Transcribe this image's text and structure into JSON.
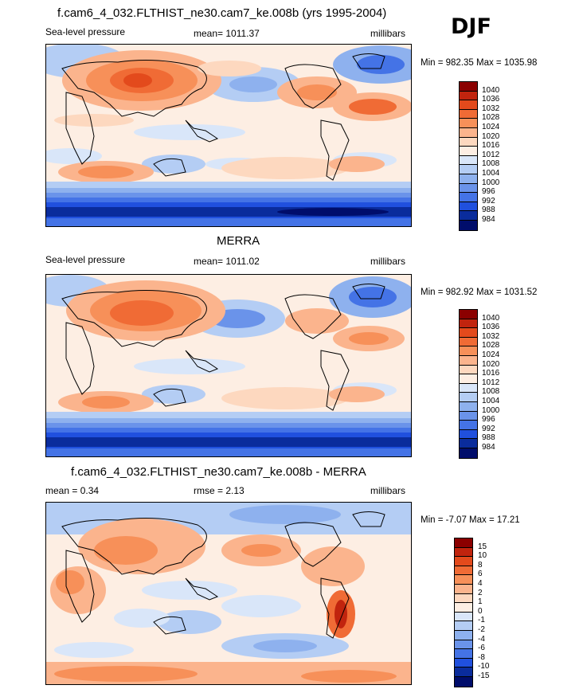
{
  "season": "DJF",
  "panels": [
    {
      "title": "f.cam6_4_032.FLTHIST_ne30.cam7_ke.008b (yrs 1995-2004)",
      "left_label": "Sea-level pressure",
      "center_label": "mean= 1011.37",
      "right_label": "millibars",
      "minmax": "Min = 982.35 Max = 1035.98",
      "colorbar": {
        "levels": [
          "1040",
          "1036",
          "1032",
          "1028",
          "1024",
          "1020",
          "1016",
          "1012",
          "1008",
          "1004",
          "1000",
          "996",
          "992",
          "988",
          "984"
        ],
        "colors": [
          "#8b0000",
          "#c1240e",
          "#e34a1c",
          "#f06b35",
          "#f79059",
          "#fbb48d",
          "#fdd8bf",
          "#fdeee3",
          "#d9e6f9",
          "#b4cdf4",
          "#8eb1ee",
          "#6a93ea",
          "#4473e6",
          "#2050de",
          "#0a2c9c",
          "#000d6b"
        ]
      }
    },
    {
      "title": "MERRA",
      "left_label": "Sea-level pressure",
      "center_label": "mean= 1011.02",
      "right_label": "millibars",
      "minmax": "Min = 982.92 Max = 1031.52",
      "colorbar": {
        "levels": [
          "1040",
          "1036",
          "1032",
          "1028",
          "1024",
          "1020",
          "1016",
          "1012",
          "1008",
          "1004",
          "1000",
          "996",
          "992",
          "988",
          "984"
        ],
        "colors": [
          "#8b0000",
          "#c1240e",
          "#e34a1c",
          "#f06b35",
          "#f79059",
          "#fbb48d",
          "#fdd8bf",
          "#fdeee3",
          "#d9e6f9",
          "#b4cdf4",
          "#8eb1ee",
          "#6a93ea",
          "#4473e6",
          "#2050de",
          "#0a2c9c",
          "#000d6b"
        ]
      }
    },
    {
      "title": "f.cam6_4_032.FLTHIST_ne30.cam7_ke.008b - MERRA",
      "left_label": "mean =   0.34",
      "center_label": "rmse =   2.13",
      "right_label": "millibars",
      "minmax": "Min =  -7.07 Max =  17.21",
      "colorbar": {
        "levels": [
          "15",
          "10",
          "8",
          "6",
          "4",
          "2",
          "1",
          "0",
          "-1",
          "-2",
          "-4",
          "-6",
          "-8",
          "-10",
          "-15"
        ],
        "colors": [
          "#8b0000",
          "#c1240e",
          "#e34a1c",
          "#f06b35",
          "#f79059",
          "#fbb48d",
          "#fdd8bf",
          "#fdeee3",
          "#d9e6f9",
          "#b4cdf4",
          "#8eb1ee",
          "#6a93ea",
          "#4473e6",
          "#2050de",
          "#0a2c9c",
          "#000d6b"
        ]
      }
    }
  ]
}
